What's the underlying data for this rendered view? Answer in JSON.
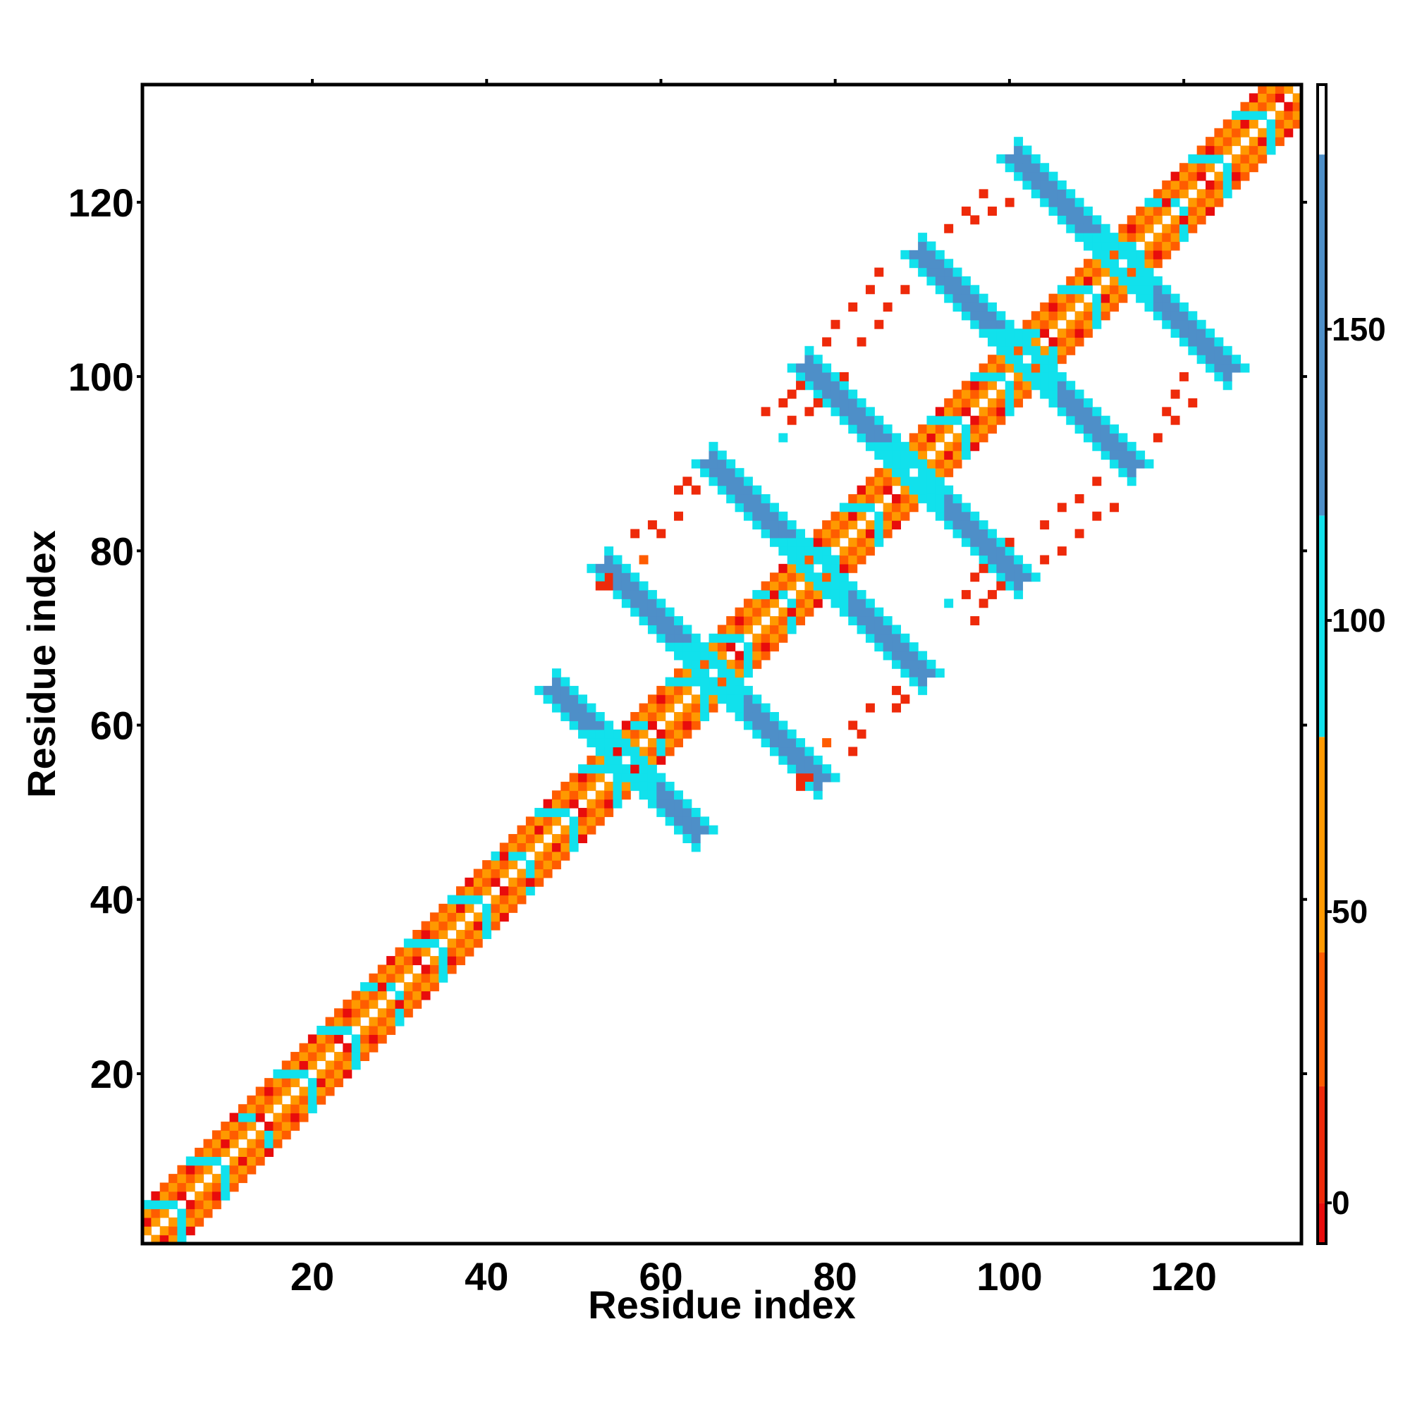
{
  "chart_data": {
    "type": "heatmap",
    "title": "",
    "xlabel": "Residue index",
    "ylabel": "Residue index",
    "xlim": [
      1,
      133
    ],
    "ylim": [
      1,
      133
    ],
    "x_ticks": [
      20,
      40,
      60,
      80,
      100,
      120
    ],
    "y_ticks": [
      20,
      40,
      60,
      80,
      100,
      120
    ],
    "grid": false,
    "colorbar": {
      "ticks": [
        0,
        50,
        100,
        150
      ],
      "range": [
        -7,
        192
      ],
      "bands": [
        {
          "from": -7,
          "to": 0,
          "color": "#e80c0c"
        },
        {
          "from": 0,
          "to": 20,
          "color": "#ee2a0a"
        },
        {
          "from": 20,
          "to": 43,
          "color": "#ff5c00"
        },
        {
          "from": 43,
          "to": 80,
          "color": "#ff9900"
        },
        {
          "from": 80,
          "to": 118,
          "color": "#11e1ec"
        },
        {
          "from": 118,
          "to": 180,
          "color": "#4e8fc8"
        },
        {
          "from": 180,
          "to": 192,
          "color": "#ffffff"
        }
      ]
    },
    "value_colors": {
      "helix_close": "#e80c0c",
      "turn": "#ff6600",
      "turn_light": "#ff9900",
      "sheet_neighbor": "#26d2ea",
      "sheet_core": "#4e8fc8",
      "sheet_light": "#11e1ec"
    },
    "diagonal_band": [
      {
        "from": 1,
        "to": 133,
        "offsets": [
          1,
          2,
          3,
          4
        ],
        "value_by_offset": {
          "1": 45,
          "2": 20,
          "3": 55,
          "4": 30
        }
      }
    ],
    "strand_crosses": [
      {
        "center_x": 56,
        "center_y": 56,
        "arm_len": 8,
        "half_width": 2,
        "value": 150
      },
      {
        "center_x": 66,
        "center_y": 66,
        "arm_len": 12,
        "half_width": 2,
        "value": 150
      },
      {
        "center_x": 78,
        "center_y": 78,
        "arm_len": 12,
        "half_width": 2,
        "value": 150
      },
      {
        "center_x": 89,
        "center_y": 89,
        "arm_len": 12,
        "half_width": 2,
        "value": 150
      },
      {
        "center_x": 102,
        "center_y": 102,
        "arm_len": 12,
        "half_width": 2,
        "value": 150
      },
      {
        "center_x": 113,
        "center_y": 113,
        "arm_len": 12,
        "half_width": 2,
        "value": 150
      }
    ],
    "scattered_contacts": [
      {
        "x": 53,
        "y": 76,
        "value": 0
      },
      {
        "x": 54,
        "y": 76,
        "value": 0
      },
      {
        "x": 57,
        "y": 82,
        "value": 10
      },
      {
        "x": 59,
        "y": 83,
        "value": 0
      },
      {
        "x": 62,
        "y": 87,
        "value": 0
      },
      {
        "x": 63,
        "y": 88,
        "value": 0
      },
      {
        "x": 76,
        "y": 53,
        "value": 0
      },
      {
        "x": 77,
        "y": 54,
        "value": 0
      },
      {
        "x": 79,
        "y": 58,
        "value": 40
      },
      {
        "x": 82,
        "y": 60,
        "value": 0
      },
      {
        "x": 84,
        "y": 62,
        "value": 0
      },
      {
        "x": 87,
        "y": 64,
        "value": 0
      },
      {
        "x": 72,
        "y": 96,
        "value": 0
      },
      {
        "x": 74,
        "y": 97,
        "value": 0
      },
      {
        "x": 75,
        "y": 98,
        "value": 0
      },
      {
        "x": 76,
        "y": 99,
        "value": 0
      },
      {
        "x": 81,
        "y": 100,
        "value": 0
      },
      {
        "x": 83,
        "y": 104,
        "value": 0
      },
      {
        "x": 85,
        "y": 106,
        "value": 0
      },
      {
        "x": 86,
        "y": 108,
        "value": 0
      },
      {
        "x": 88,
        "y": 110,
        "value": 0
      },
      {
        "x": 95,
        "y": 75,
        "value": 0
      },
      {
        "x": 96,
        "y": 77,
        "value": 0
      },
      {
        "x": 97,
        "y": 78,
        "value": 0
      },
      {
        "x": 93,
        "y": 74,
        "value": 100
      },
      {
        "x": 96,
        "y": 118,
        "value": 0
      },
      {
        "x": 98,
        "y": 119,
        "value": 0
      },
      {
        "x": 100,
        "y": 120,
        "value": 0
      },
      {
        "x": 104,
        "y": 79,
        "value": 0
      },
      {
        "x": 106,
        "y": 80,
        "value": 0
      },
      {
        "x": 108,
        "y": 82,
        "value": 0
      },
      {
        "x": 110,
        "y": 84,
        "value": 0
      },
      {
        "x": 112,
        "y": 85,
        "value": 0
      },
      {
        "x": 117,
        "y": 93,
        "value": 0
      },
      {
        "x": 119,
        "y": 95,
        "value": 0
      },
      {
        "x": 121,
        "y": 97,
        "value": 0
      }
    ]
  }
}
